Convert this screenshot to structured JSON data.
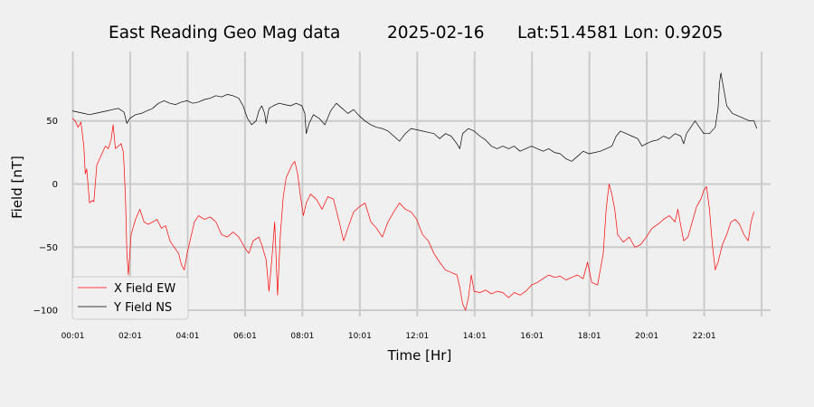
{
  "chart_data": {
    "type": "line",
    "title": {
      "station": "East Reading Geo Mag data",
      "date": "2025-02-16",
      "location": "Lat:51.4581  Lon: 0.9205"
    },
    "xlabel": "Time  [Hr]",
    "ylabel": "Field  [nT]",
    "xlim": [
      0,
      24.33
    ],
    "ylim": [
      -105,
      105
    ],
    "grid": true,
    "legend_position": "lower-left",
    "x_ticks": [
      {
        "value": 0.017,
        "label": "00:01"
      },
      {
        "value": 2.017,
        "label": "02:01"
      },
      {
        "value": 4.017,
        "label": "04:01"
      },
      {
        "value": 6.017,
        "label": "06:01"
      },
      {
        "value": 8.017,
        "label": "08:01"
      },
      {
        "value": 10.017,
        "label": "10:01"
      },
      {
        "value": 12.017,
        "label": "12:01"
      },
      {
        "value": 14.017,
        "label": "14:01"
      },
      {
        "value": 16.017,
        "label": "16:01"
      },
      {
        "value": 18.017,
        "label": "18:01"
      },
      {
        "value": 20.017,
        "label": "20:01"
      },
      {
        "value": 22.017,
        "label": "22:01"
      },
      {
        "value": 24.017,
        "label": ""
      }
    ],
    "y_ticks": [
      {
        "value": 50,
        "label": "50"
      },
      {
        "value": 0,
        "label": "0"
      },
      {
        "value": -50,
        "label": "−50"
      },
      {
        "value": -100,
        "label": "−100"
      }
    ],
    "series": [
      {
        "name": "X Field EW",
        "color": "#ff0000",
        "points": [
          [
            0.0,
            52
          ],
          [
            0.1,
            50
          ],
          [
            0.2,
            45
          ],
          [
            0.3,
            49
          ],
          [
            0.4,
            30
          ],
          [
            0.45,
            8
          ],
          [
            0.5,
            12
          ],
          [
            0.6,
            -15
          ],
          [
            0.7,
            -13
          ],
          [
            0.75,
            -14
          ],
          [
            0.85,
            15
          ],
          [
            0.95,
            20
          ],
          [
            1.05,
            25
          ],
          [
            1.15,
            30
          ],
          [
            1.25,
            28
          ],
          [
            1.35,
            35
          ],
          [
            1.42,
            47
          ],
          [
            1.5,
            28
          ],
          [
            1.6,
            30
          ],
          [
            1.7,
            32
          ],
          [
            1.78,
            25
          ],
          [
            1.85,
            -10
          ],
          [
            1.9,
            -55
          ],
          [
            1.95,
            -72
          ],
          [
            2.05,
            -40
          ],
          [
            2.2,
            -28
          ],
          [
            2.35,
            -20
          ],
          [
            2.5,
            -30
          ],
          [
            2.65,
            -32
          ],
          [
            2.8,
            -30
          ],
          [
            2.95,
            -28
          ],
          [
            3.1,
            -35
          ],
          [
            3.25,
            -33
          ],
          [
            3.4,
            -45
          ],
          [
            3.55,
            -50
          ],
          [
            3.7,
            -55
          ],
          [
            3.8,
            -64
          ],
          [
            3.9,
            -68
          ],
          [
            4.0,
            -55
          ],
          [
            4.1,
            -45
          ],
          [
            4.25,
            -30
          ],
          [
            4.4,
            -25
          ],
          [
            4.6,
            -28
          ],
          [
            4.8,
            -26
          ],
          [
            5.0,
            -30
          ],
          [
            5.2,
            -40
          ],
          [
            5.4,
            -42
          ],
          [
            5.6,
            -38
          ],
          [
            5.8,
            -42
          ],
          [
            6.0,
            -50
          ],
          [
            6.15,
            -55
          ],
          [
            6.3,
            -45
          ],
          [
            6.5,
            -42
          ],
          [
            6.6,
            -48
          ],
          [
            6.75,
            -60
          ],
          [
            6.85,
            -85
          ],
          [
            6.95,
            -60
          ],
          [
            7.05,
            -30
          ],
          [
            7.15,
            -88
          ],
          [
            7.25,
            -40
          ],
          [
            7.35,
            -10
          ],
          [
            7.45,
            5
          ],
          [
            7.55,
            10
          ],
          [
            7.65,
            15
          ],
          [
            7.75,
            18
          ],
          [
            7.85,
            8
          ],
          [
            7.95,
            -10
          ],
          [
            8.05,
            -25
          ],
          [
            8.15,
            -15
          ],
          [
            8.3,
            -8
          ],
          [
            8.5,
            -12
          ],
          [
            8.7,
            -20
          ],
          [
            8.9,
            -10
          ],
          [
            9.1,
            -12
          ],
          [
            9.3,
            -30
          ],
          [
            9.45,
            -45
          ],
          [
            9.6,
            -35
          ],
          [
            9.8,
            -22
          ],
          [
            10.0,
            -18
          ],
          [
            10.2,
            -15
          ],
          [
            10.4,
            -30
          ],
          [
            10.6,
            -35
          ],
          [
            10.8,
            -42
          ],
          [
            11.0,
            -30
          ],
          [
            11.2,
            -22
          ],
          [
            11.4,
            -15
          ],
          [
            11.6,
            -20
          ],
          [
            11.8,
            -22
          ],
          [
            12.0,
            -28
          ],
          [
            12.2,
            -40
          ],
          [
            12.4,
            -45
          ],
          [
            12.6,
            -55
          ],
          [
            12.8,
            -62
          ],
          [
            13.0,
            -68
          ],
          [
            13.2,
            -70
          ],
          [
            13.4,
            -72
          ],
          [
            13.5,
            -82
          ],
          [
            13.6,
            -95
          ],
          [
            13.7,
            -100
          ],
          [
            13.8,
            -90
          ],
          [
            13.9,
            -72
          ],
          [
            14.0,
            -85
          ],
          [
            14.2,
            -86
          ],
          [
            14.4,
            -84
          ],
          [
            14.6,
            -87
          ],
          [
            14.8,
            -85
          ],
          [
            15.0,
            -86
          ],
          [
            15.2,
            -90
          ],
          [
            15.4,
            -86
          ],
          [
            15.6,
            -88
          ],
          [
            15.8,
            -85
          ],
          [
            16.0,
            -80
          ],
          [
            16.2,
            -78
          ],
          [
            16.4,
            -75
          ],
          [
            16.6,
            -72
          ],
          [
            16.8,
            -74
          ],
          [
            17.0,
            -73
          ],
          [
            17.2,
            -76
          ],
          [
            17.4,
            -74
          ],
          [
            17.6,
            -72
          ],
          [
            17.8,
            -75
          ],
          [
            17.95,
            -62
          ],
          [
            18.1,
            -78
          ],
          [
            18.3,
            -80
          ],
          [
            18.5,
            -55
          ],
          [
            18.6,
            -20
          ],
          [
            18.7,
            0
          ],
          [
            18.8,
            -8
          ],
          [
            18.9,
            -20
          ],
          [
            19.0,
            -40
          ],
          [
            19.2,
            -46
          ],
          [
            19.4,
            -42
          ],
          [
            19.6,
            -50
          ],
          [
            19.8,
            -48
          ],
          [
            20.0,
            -42
          ],
          [
            20.2,
            -35
          ],
          [
            20.4,
            -32
          ],
          [
            20.6,
            -28
          ],
          [
            20.8,
            -25
          ],
          [
            21.0,
            -30
          ],
          [
            21.1,
            -20
          ],
          [
            21.2,
            -33
          ],
          [
            21.3,
            -45
          ],
          [
            21.45,
            -42
          ],
          [
            21.6,
            -30
          ],
          [
            21.75,
            -18
          ],
          [
            21.9,
            -12
          ],
          [
            22.0,
            -5
          ],
          [
            22.1,
            -2
          ],
          [
            22.2,
            -20
          ],
          [
            22.3,
            -48
          ],
          [
            22.4,
            -68
          ],
          [
            22.5,
            -62
          ],
          [
            22.65,
            -48
          ],
          [
            22.8,
            -40
          ],
          [
            22.95,
            -30
          ],
          [
            23.1,
            -28
          ],
          [
            23.25,
            -32
          ],
          [
            23.4,
            -40
          ],
          [
            23.55,
            -45
          ],
          [
            23.65,
            -30
          ],
          [
            23.75,
            -22
          ]
        ]
      },
      {
        "name": "Y Field NS",
        "color": "#000000",
        "points": [
          [
            0.0,
            58
          ],
          [
            0.2,
            57
          ],
          [
            0.4,
            56
          ],
          [
            0.6,
            55
          ],
          [
            0.8,
            56
          ],
          [
            1.0,
            57
          ],
          [
            1.2,
            58
          ],
          [
            1.4,
            59
          ],
          [
            1.6,
            60
          ],
          [
            1.8,
            57
          ],
          [
            1.9,
            48
          ],
          [
            2.0,
            52
          ],
          [
            2.2,
            55
          ],
          [
            2.4,
            56
          ],
          [
            2.6,
            58
          ],
          [
            2.8,
            60
          ],
          [
            3.0,
            64
          ],
          [
            3.2,
            66
          ],
          [
            3.4,
            64
          ],
          [
            3.6,
            63
          ],
          [
            3.8,
            65
          ],
          [
            4.0,
            66
          ],
          [
            4.2,
            64
          ],
          [
            4.4,
            65
          ],
          [
            4.6,
            67
          ],
          [
            4.8,
            68
          ],
          [
            5.0,
            70
          ],
          [
            5.2,
            69
          ],
          [
            5.4,
            71
          ],
          [
            5.6,
            70
          ],
          [
            5.8,
            68
          ],
          [
            5.95,
            62
          ],
          [
            6.1,
            52
          ],
          [
            6.25,
            47
          ],
          [
            6.4,
            50
          ],
          [
            6.5,
            58
          ],
          [
            6.6,
            62
          ],
          [
            6.7,
            56
          ],
          [
            6.75,
            48
          ],
          [
            6.85,
            60
          ],
          [
            7.0,
            62
          ],
          [
            7.2,
            64
          ],
          [
            7.4,
            63
          ],
          [
            7.6,
            62
          ],
          [
            7.8,
            64
          ],
          [
            8.0,
            62
          ],
          [
            8.1,
            56
          ],
          [
            8.15,
            40
          ],
          [
            8.25,
            48
          ],
          [
            8.4,
            55
          ],
          [
            8.6,
            52
          ],
          [
            8.8,
            47
          ],
          [
            9.0,
            58
          ],
          [
            9.2,
            64
          ],
          [
            9.4,
            60
          ],
          [
            9.6,
            56
          ],
          [
            9.8,
            59
          ],
          [
            10.0,
            54
          ],
          [
            10.2,
            50
          ],
          [
            10.4,
            47
          ],
          [
            10.6,
            45
          ],
          [
            10.8,
            44
          ],
          [
            11.0,
            42
          ],
          [
            11.2,
            38
          ],
          [
            11.4,
            34
          ],
          [
            11.6,
            40
          ],
          [
            11.8,
            44
          ],
          [
            12.0,
            43
          ],
          [
            12.2,
            42
          ],
          [
            12.4,
            41
          ],
          [
            12.6,
            40
          ],
          [
            12.8,
            36
          ],
          [
            13.0,
            40
          ],
          [
            13.2,
            38
          ],
          [
            13.4,
            32
          ],
          [
            13.5,
            28
          ],
          [
            13.6,
            40
          ],
          [
            13.8,
            44
          ],
          [
            14.0,
            42
          ],
          [
            14.2,
            38
          ],
          [
            14.4,
            35
          ],
          [
            14.6,
            30
          ],
          [
            14.8,
            28
          ],
          [
            15.0,
            30
          ],
          [
            15.2,
            28
          ],
          [
            15.4,
            30
          ],
          [
            15.6,
            26
          ],
          [
            15.8,
            28
          ],
          [
            16.0,
            30
          ],
          [
            16.2,
            28
          ],
          [
            16.4,
            26
          ],
          [
            16.6,
            28
          ],
          [
            16.8,
            25
          ],
          [
            17.0,
            24
          ],
          [
            17.2,
            20
          ],
          [
            17.4,
            18
          ],
          [
            17.6,
            22
          ],
          [
            17.8,
            26
          ],
          [
            18.0,
            24
          ],
          [
            18.2,
            25
          ],
          [
            18.4,
            26
          ],
          [
            18.6,
            28
          ],
          [
            18.8,
            30
          ],
          [
            18.95,
            38
          ],
          [
            19.1,
            42
          ],
          [
            19.3,
            40
          ],
          [
            19.5,
            38
          ],
          [
            19.7,
            36
          ],
          [
            19.85,
            30
          ],
          [
            20.0,
            32
          ],
          [
            20.2,
            34
          ],
          [
            20.4,
            35
          ],
          [
            20.6,
            38
          ],
          [
            20.8,
            36
          ],
          [
            21.0,
            40
          ],
          [
            21.2,
            38
          ],
          [
            21.3,
            32
          ],
          [
            21.4,
            40
          ],
          [
            21.55,
            45
          ],
          [
            21.7,
            50
          ],
          [
            21.85,
            45
          ],
          [
            22.0,
            40
          ],
          [
            22.2,
            40
          ],
          [
            22.4,
            45
          ],
          [
            22.5,
            60
          ],
          [
            22.55,
            80
          ],
          [
            22.6,
            88
          ],
          [
            22.7,
            75
          ],
          [
            22.8,
            62
          ],
          [
            23.0,
            56
          ],
          [
            23.2,
            54
          ],
          [
            23.4,
            52
          ],
          [
            23.6,
            50
          ],
          [
            23.75,
            50
          ],
          [
            23.85,
            44
          ]
        ]
      }
    ]
  }
}
